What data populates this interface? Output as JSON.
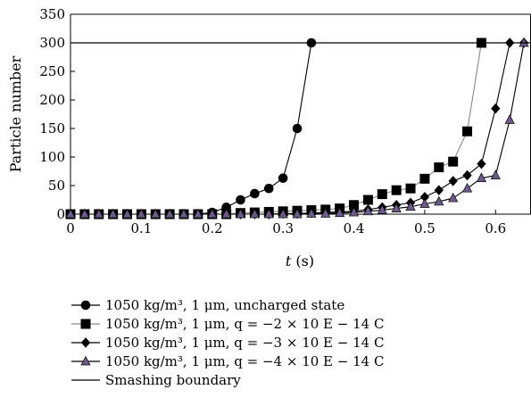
{
  "chart_data": {
    "type": "line",
    "xlabel_var": "t",
    "xlabel_unit": " (s)",
    "ylabel": "Particle number",
    "xlim": [
      0,
      0.65
    ],
    "ylim": [
      0,
      350
    ],
    "xticks": [
      "0",
      "0.1",
      "0.2",
      "0.3",
      "0.4",
      "0.5",
      "0.6"
    ],
    "yticks": [
      "0",
      "50",
      "100",
      "150",
      "200",
      "250",
      "300",
      "350"
    ],
    "grid": false,
    "legend_position": "below",
    "series": [
      {
        "name": "1050 kg/m³, 1 μm, uncharged state",
        "marker": "circle",
        "color": "#000000",
        "x": [
          0,
          0.02,
          0.04,
          0.06,
          0.08,
          0.1,
          0.12,
          0.14,
          0.16,
          0.18,
          0.2,
          0.22,
          0.24,
          0.26,
          0.28,
          0.3,
          0.32,
          0.34
        ],
        "y": [
          0,
          0,
          0,
          0,
          0,
          0,
          0,
          0,
          0,
          0,
          3,
          12,
          25,
          36,
          45,
          63,
          150,
          300
        ]
      },
      {
        "name": "1050 kg/m³, 1 μm, q = −2 × 10 E − 14 C",
        "marker": "square",
        "color": "#777777",
        "x": [
          0,
          0.02,
          0.04,
          0.06,
          0.08,
          0.1,
          0.12,
          0.14,
          0.16,
          0.18,
          0.2,
          0.22,
          0.24,
          0.26,
          0.28,
          0.3,
          0.32,
          0.34,
          0.36,
          0.38,
          0.4,
          0.42,
          0.44,
          0.46,
          0.48,
          0.5,
          0.52,
          0.54,
          0.56,
          0.58
        ],
        "y": [
          0,
          0,
          0,
          0,
          0,
          0,
          0,
          0,
          0,
          0,
          0,
          0,
          2,
          3,
          4,
          5,
          6,
          7,
          8,
          10,
          16,
          25,
          35,
          42,
          45,
          62,
          82,
          92,
          145,
          300
        ]
      },
      {
        "name": "1050 kg/m³, 1 μm, q = −3 × 10 E − 14 C",
        "marker": "diamond",
        "color": "#000000",
        "x": [
          0,
          0.02,
          0.04,
          0.06,
          0.08,
          0.1,
          0.12,
          0.14,
          0.16,
          0.18,
          0.2,
          0.22,
          0.24,
          0.26,
          0.28,
          0.3,
          0.32,
          0.34,
          0.36,
          0.38,
          0.4,
          0.42,
          0.44,
          0.46,
          0.48,
          0.5,
          0.52,
          0.54,
          0.56,
          0.58,
          0.6,
          0.62,
          0.64
        ],
        "y": [
          0,
          0,
          0,
          0,
          0,
          0,
          0,
          0,
          0,
          0,
          0,
          0,
          0,
          0,
          0,
          1,
          1,
          2,
          3,
          4,
          5,
          8,
          12,
          16,
          20,
          30,
          42,
          58,
          68,
          88,
          185,
          300,
          300
        ]
      },
      {
        "name": "1050 kg/m³, 1 μm, q = −4 × 10 E − 14 C",
        "marker": "triangle",
        "color": "#6b5a8a",
        "x": [
          0,
          0.02,
          0.04,
          0.06,
          0.08,
          0.1,
          0.12,
          0.14,
          0.16,
          0.18,
          0.2,
          0.22,
          0.24,
          0.26,
          0.28,
          0.3,
          0.32,
          0.34,
          0.36,
          0.38,
          0.4,
          0.42,
          0.44,
          0.46,
          0.48,
          0.5,
          0.52,
          0.54,
          0.56,
          0.58,
          0.6,
          0.62,
          0.64
        ],
        "y": [
          0,
          0,
          0,
          0,
          0,
          0,
          0,
          0,
          0,
          0,
          0,
          0,
          0,
          0,
          0,
          0,
          0,
          1,
          1,
          2,
          3,
          5,
          7,
          10,
          13,
          18,
          22,
          28,
          45,
          63,
          68,
          165,
          300
        ]
      },
      {
        "name": "Smashing boundary",
        "marker": "none",
        "color": "#000000",
        "x": [
          0,
          0.65
        ],
        "y": [
          300,
          300
        ]
      }
    ]
  }
}
